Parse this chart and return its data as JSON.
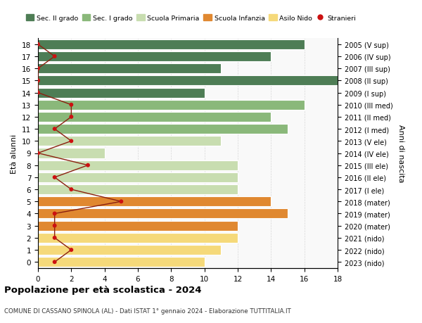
{
  "ages": [
    0,
    1,
    2,
    3,
    4,
    5,
    6,
    7,
    8,
    9,
    10,
    11,
    12,
    13,
    14,
    15,
    16,
    17,
    18
  ],
  "years_labels": [
    "2023 (nido)",
    "2022 (nido)",
    "2021 (nido)",
    "2020 (mater)",
    "2019 (mater)",
    "2018 (mater)",
    "2017 (I ele)",
    "2016 (II ele)",
    "2015 (III ele)",
    "2014 (IV ele)",
    "2013 (V ele)",
    "2012 (I med)",
    "2011 (II med)",
    "2010 (III med)",
    "2009 (I sup)",
    "2008 (II sup)",
    "2007 (III sup)",
    "2006 (IV sup)",
    "2005 (V sup)"
  ],
  "bar_values": [
    10,
    11,
    12,
    12,
    15,
    14,
    12,
    12,
    12,
    4,
    11,
    15,
    14,
    16,
    10,
    18,
    11,
    14,
    16
  ],
  "bar_colors": [
    "#f5d97a",
    "#f5d97a",
    "#f5d97a",
    "#e08830",
    "#e08830",
    "#e08830",
    "#c8ddb0",
    "#c8ddb0",
    "#c8ddb0",
    "#c8ddb0",
    "#c8ddb0",
    "#8ab87a",
    "#8ab87a",
    "#8ab87a",
    "#4e7d55",
    "#4e7d55",
    "#4e7d55",
    "#4e7d55",
    "#4e7d55"
  ],
  "stranieri_values": [
    1,
    2,
    1,
    1,
    1,
    5,
    2,
    1,
    3,
    0,
    2,
    1,
    2,
    2,
    0,
    0,
    0,
    1,
    0
  ],
  "title1": "Popolazione per età scolastica - 2024",
  "title2": "COMUNE DI CASSANO SPINOLA (AL) - Dati ISTAT 1° gennaio 2024 - Elaborazione TUTTITALIA.IT",
  "ylabel_left": "Età alunni",
  "ylabel_right": "Anni di nascita",
  "xlim": [
    0,
    18
  ],
  "ylim": [
    -0.5,
    18.5
  ],
  "legend_labels": [
    "Sec. II grado",
    "Sec. I grado",
    "Scuola Primaria",
    "Scuola Infanzia",
    "Asilo Nido",
    "Stranieri"
  ],
  "legend_colors": [
    "#4e7d55",
    "#8ab87a",
    "#c8ddb0",
    "#e08830",
    "#f5d97a",
    "#cc1111"
  ],
  "bg_color": "#ffffff",
  "plot_bg": "#f9f9f9",
  "grid_color": "#d8d8d8"
}
